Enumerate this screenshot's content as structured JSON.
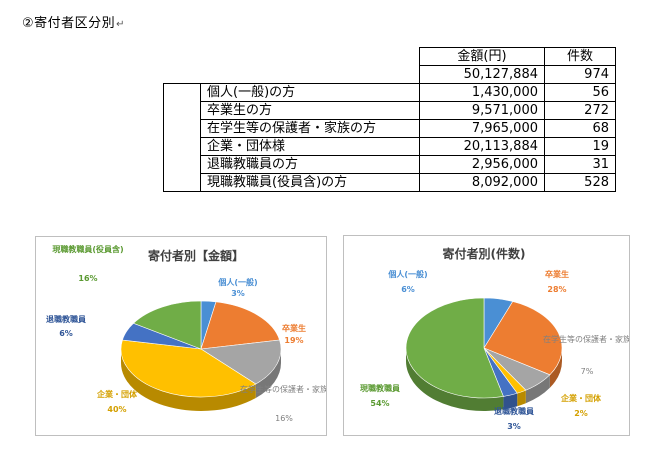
{
  "heading": "②寄付者区分別",
  "heading_mark": "↵",
  "table": {
    "headers": [
      "金額(円)",
      "件数"
    ],
    "total": {
      "amount": "50,127,884",
      "count": "974"
    },
    "rows": [
      {
        "label": "個人(一般)の方",
        "amount": "1,430,000",
        "count": "56"
      },
      {
        "label": "卒業生の方",
        "amount": "9,571,000",
        "count": "272"
      },
      {
        "label": "在学生等の保護者・家族の方",
        "amount": "7,965,000",
        "count": "68"
      },
      {
        "label": "企業・団体様",
        "amount": "20,113,884",
        "count": "19"
      },
      {
        "label": "退職教職員の方",
        "amount": "2,956,000",
        "count": "31"
      },
      {
        "label": "現職教職員(役員含)の方",
        "amount": "8,092,000",
        "count": "528"
      }
    ]
  },
  "chart_data": [
    {
      "type": "pie",
      "title": "寄付者別【金額】",
      "slices": [
        {
          "label": "個人(一般)",
          "percent": "3%",
          "value": 3,
          "color": "#4a8fd4"
        },
        {
          "label": "卒業生",
          "percent": "19%",
          "value": 19,
          "color": "#ed7d31"
        },
        {
          "label": "在学生等の保護者・家族",
          "percent": "16%",
          "value": 16,
          "color": "#a5a5a5"
        },
        {
          "label": "企業・団体",
          "percent": "40%",
          "value": 40,
          "color": "#ffc000"
        },
        {
          "label": "退職教職員",
          "percent": "6%",
          "value": 6,
          "color": "#4472c4"
        },
        {
          "label": "現職教職員(役員含)",
          "percent": "16%",
          "value": 16,
          "color": "#70ad47"
        }
      ]
    },
    {
      "type": "pie",
      "title": "寄付者別(件数)",
      "slices": [
        {
          "label": "個人(一般)",
          "percent": "6%",
          "value": 6,
          "color": "#4a8fd4"
        },
        {
          "label": "卒業生",
          "percent": "28%",
          "value": 28,
          "color": "#ed7d31"
        },
        {
          "label": "在学生等の保護者・家族",
          "percent": "7%",
          "value": 7,
          "color": "#a5a5a5"
        },
        {
          "label": "企業・団体",
          "percent": "2%",
          "value": 2,
          "color": "#ffc000"
        },
        {
          "label": "退職教職員",
          "percent": "3%",
          "value": 3,
          "color": "#4472c4"
        },
        {
          "label": "現職教職員",
          "percent": "54%",
          "value": 54,
          "color": "#70ad47"
        }
      ]
    }
  ]
}
